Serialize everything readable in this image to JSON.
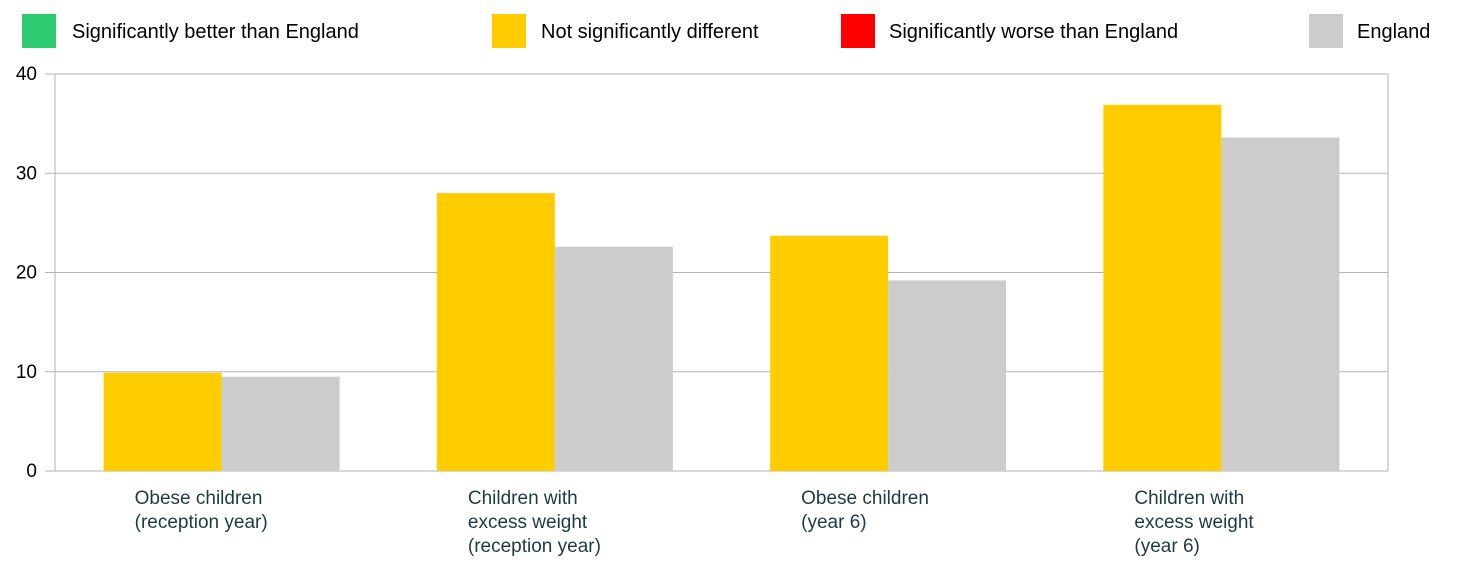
{
  "legend": [
    {
      "label": "Significantly better than England",
      "color": "#2ecc71"
    },
    {
      "label": "Not significantly different",
      "color": "#ffcc00"
    },
    {
      "label": "Significantly worse than England",
      "color": "#ff0000"
    },
    {
      "label": "England",
      "color": "#cccccc"
    }
  ],
  "chart_data": {
    "type": "bar",
    "categories": [
      [
        "Obese children",
        "(reception year)"
      ],
      [
        "Children with",
        "excess weight",
        "(reception year)"
      ],
      [
        "Obese children",
        "(year 6)"
      ],
      [
        "Children with",
        "excess weight",
        "(year 6)"
      ]
    ],
    "series": [
      {
        "values": [
          9.9,
          28.0,
          23.7,
          36.9
        ],
        "color": "#ffcc00"
      },
      {
        "name": "England",
        "values": [
          9.5,
          22.6,
          19.2,
          33.6
        ],
        "color": "#cccccc"
      }
    ],
    "ylim": [
      0,
      40
    ],
    "yticks": [
      "0",
      "10",
      "20",
      "30",
      "40"
    ],
    "grid": true,
    "legend_position": "top"
  }
}
